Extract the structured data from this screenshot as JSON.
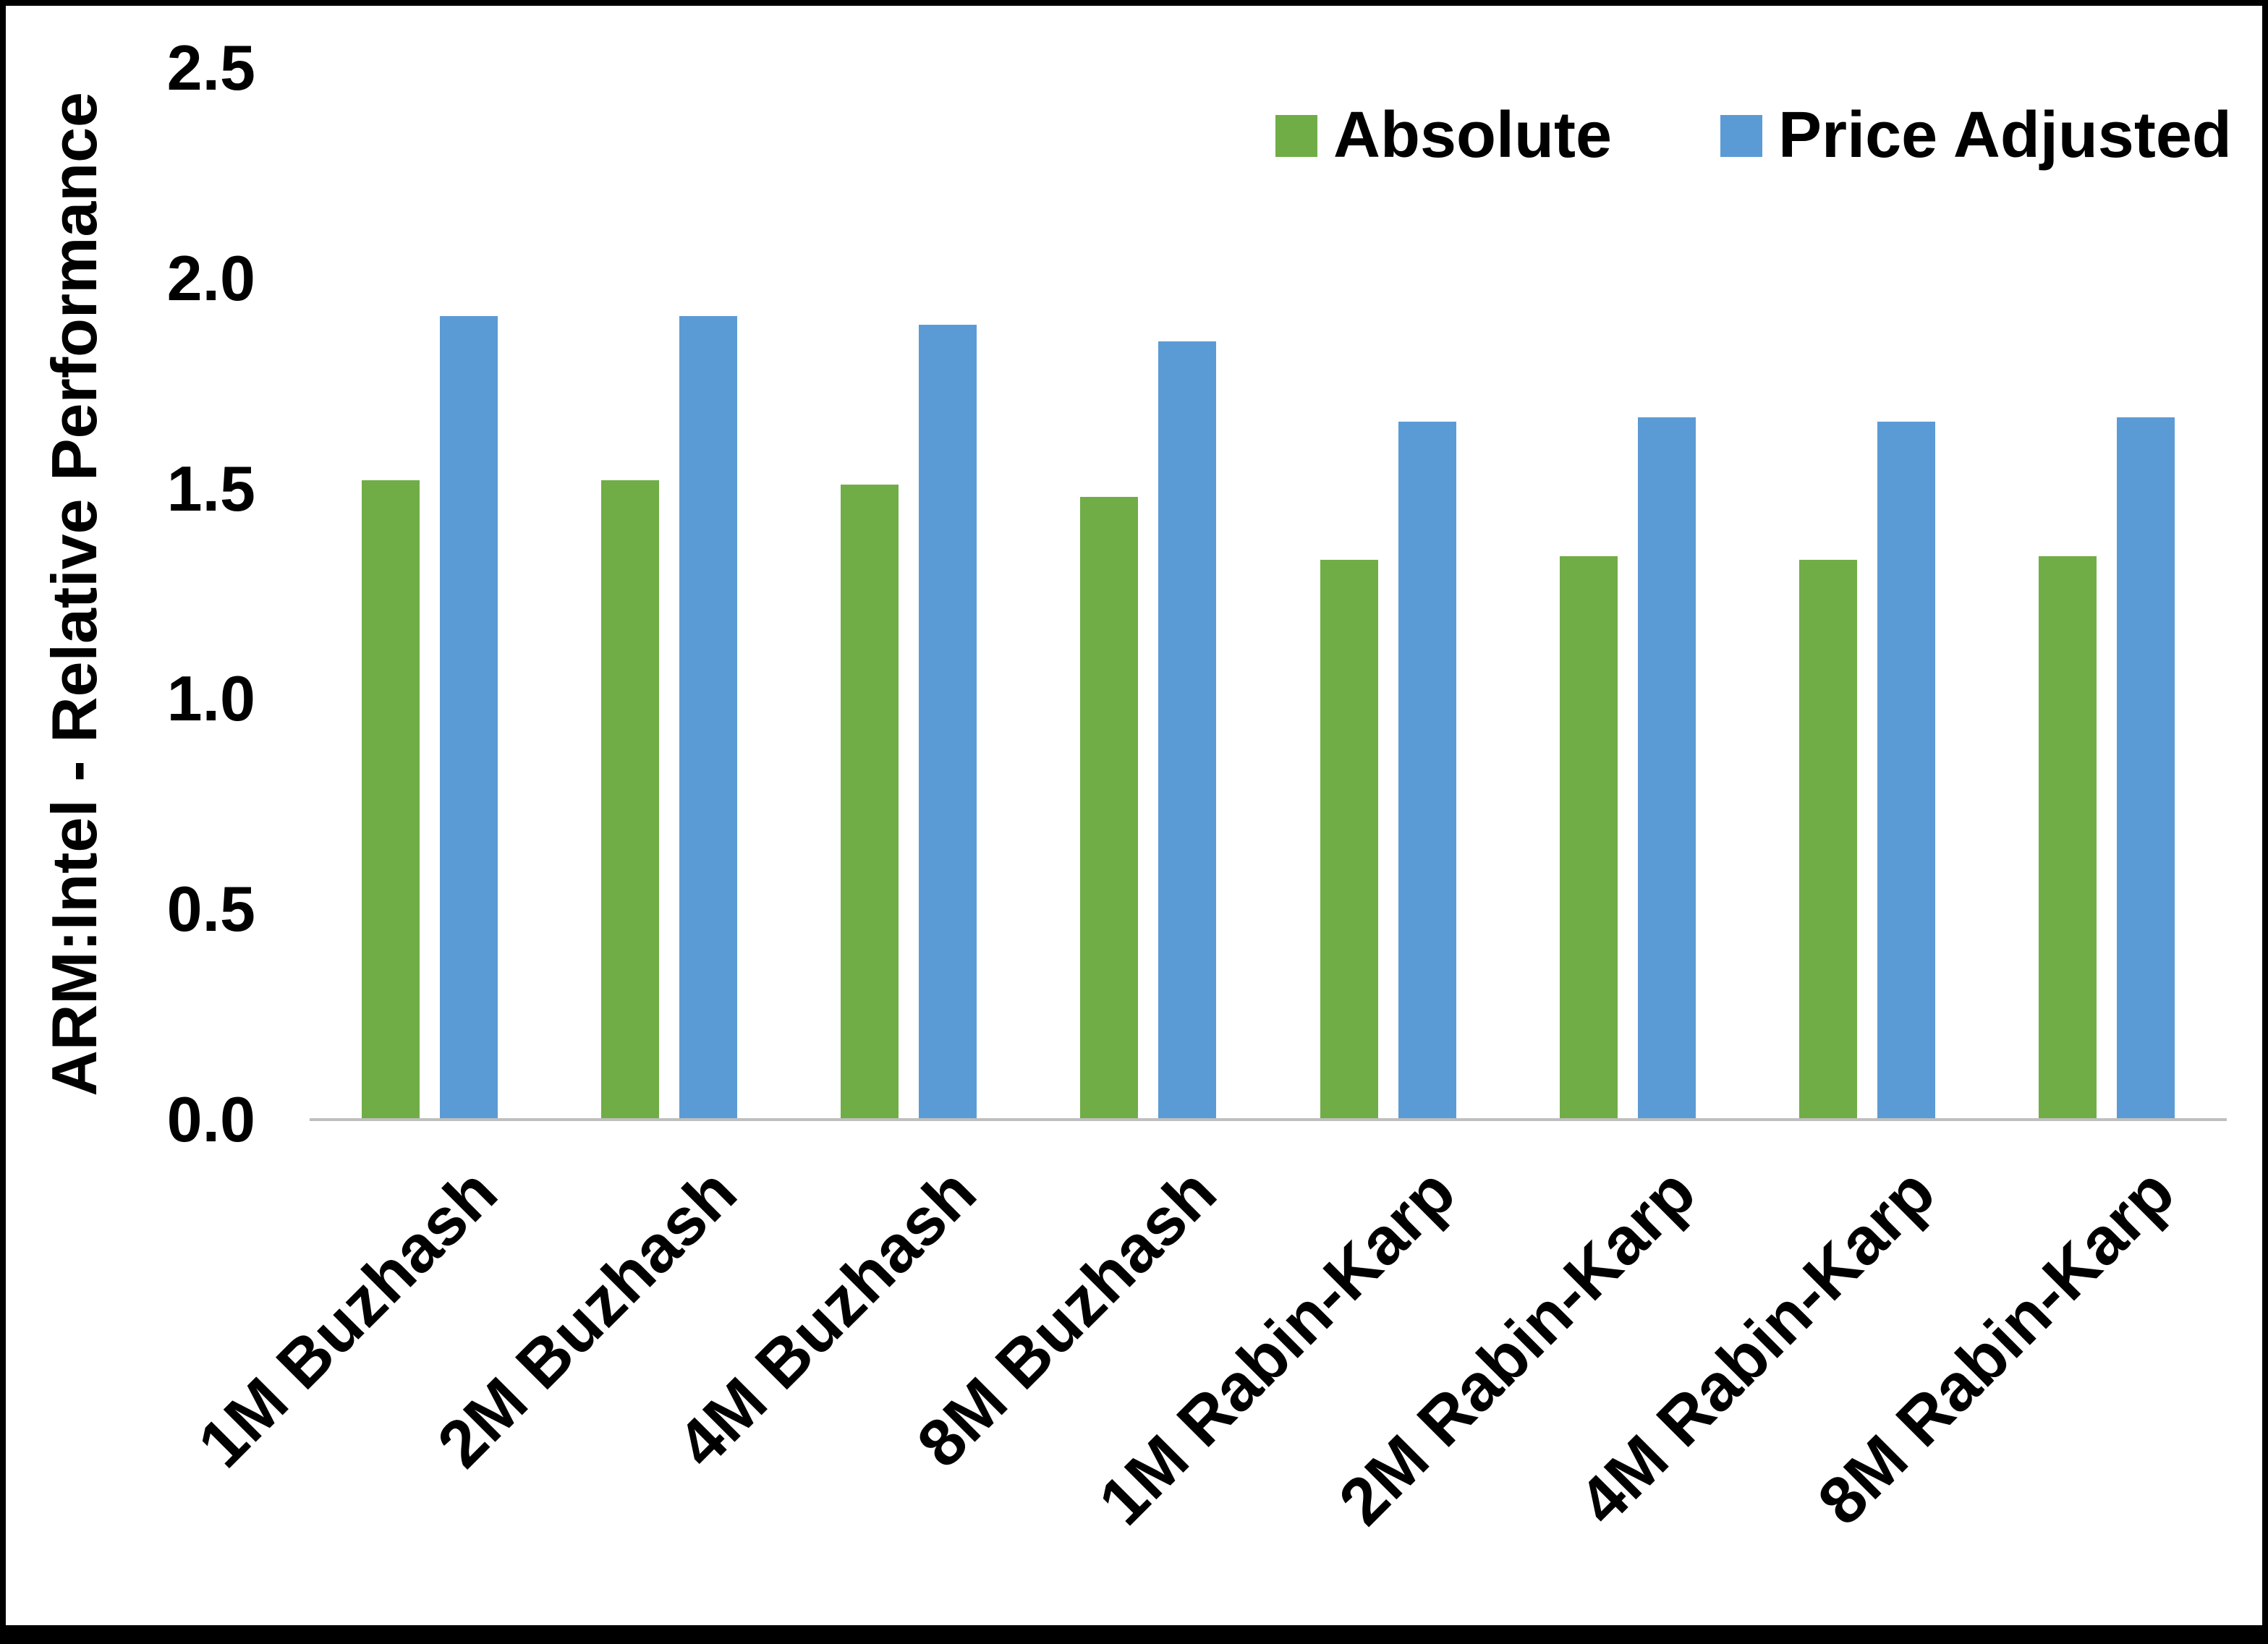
{
  "chart_data": {
    "type": "bar",
    "title": "",
    "xlabel": "",
    "ylabel": "ARM:Intel - Relative Performance",
    "ylim": [
      0,
      2.5
    ],
    "yticks": [
      0.0,
      0.5,
      1.0,
      1.5,
      2.0,
      2.5
    ],
    "ytick_labels": [
      "0.0",
      "0.5",
      "1.0",
      "1.5",
      "2.0",
      "2.5"
    ],
    "grid": false,
    "legend_position": "top-right",
    "axis_line_color": "#bfbfbf",
    "categories": [
      "1M Buzhash",
      "2M Buzhash",
      "4M Buzhash",
      "8M Buzhash",
      "1M Rabin-Karp",
      "2M Rabin-Karp",
      "4M Rabin-Karp",
      "8M Rabin-Karp"
    ],
    "series": [
      {
        "name": "Absolute",
        "color": "#70AD47",
        "values": [
          1.52,
          1.52,
          1.51,
          1.48,
          1.33,
          1.34,
          1.33,
          1.34
        ]
      },
      {
        "name": "Price Adjusted",
        "color": "#5B9BD5",
        "values": [
          1.91,
          1.91,
          1.89,
          1.85,
          1.66,
          1.67,
          1.66,
          1.67
        ]
      }
    ]
  }
}
